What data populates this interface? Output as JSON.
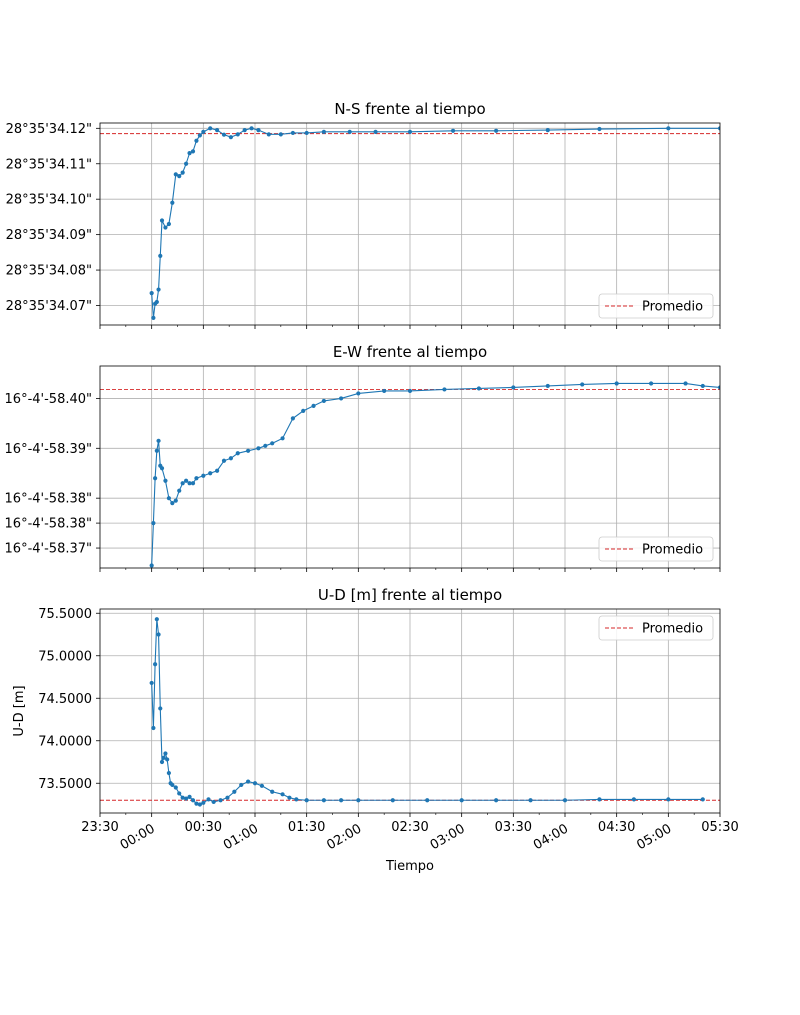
{
  "chart_data": [
    {
      "type": "line",
      "title": "N-S frente al tiempo",
      "ylabel": "",
      "ylim": [
        34.0645,
        34.1215
      ],
      "yticks": [
        {
          "v": 34.12,
          "label": "28°35'34.12\""
        },
        {
          "v": 34.11,
          "label": "28°35'34.11\""
        },
        {
          "v": 34.1,
          "label": "28°35'34.10\""
        },
        {
          "v": 34.09,
          "label": "28°35'34.09\""
        },
        {
          "v": 34.08,
          "label": "28°35'34.08\""
        },
        {
          "v": 34.07,
          "label": "28°35'34.07\""
        }
      ],
      "mean": 34.1185,
      "legend": {
        "label": "Promedio",
        "position": "lower right"
      },
      "series": [
        {
          "x": [
            0,
            1,
            2,
            3,
            4,
            5,
            6,
            8,
            10,
            12,
            14,
            16,
            18,
            20,
            22,
            24,
            26,
            28,
            30,
            34,
            38,
            42,
            46,
            50,
            54,
            58,
            62,
            68,
            75,
            82,
            90,
            100,
            115,
            130,
            150,
            175,
            200,
            230,
            260,
            300,
            330
          ],
          "y": [
            34.0735,
            34.0665,
            34.0705,
            34.071,
            34.0745,
            34.084,
            34.094,
            34.092,
            34.093,
            34.099,
            34.107,
            34.1065,
            34.1075,
            34.11,
            34.113,
            34.1135,
            34.1165,
            34.118,
            34.119,
            34.12,
            34.1195,
            34.1182,
            34.1175,
            34.1183,
            34.1195,
            34.12,
            34.1195,
            34.1183,
            34.1183,
            34.1187,
            34.1187,
            34.119,
            34.119,
            34.119,
            34.119,
            34.1193,
            34.1193,
            34.1195,
            34.1198,
            34.12,
            34.12
          ]
        }
      ]
    },
    {
      "type": "line",
      "title": "E-W frente al tiempo",
      "ylabel": "",
      "ylim": [
        58.366,
        58.4065
      ],
      "yticks": [
        {
          "v": 58.4,
          "label": "16°-4'-58.40\""
        },
        {
          "v": 58.39,
          "label": "16°-4'-58.39\""
        },
        {
          "v": 58.38,
          "label": "16°-4'-58.38\""
        },
        {
          "v": 58.375,
          "label": "16°-4'-58.38\""
        },
        {
          "v": 58.37,
          "label": "16°-4'-58.37\""
        }
      ],
      "mean": 58.4018,
      "legend": {
        "label": "Promedio",
        "position": "lower right"
      },
      "series": [
        {
          "x": [
            0,
            1,
            2,
            3,
            4,
            5,
            6,
            8,
            10,
            12,
            14,
            16,
            18,
            20,
            22,
            24,
            26,
            30,
            34,
            38,
            42,
            46,
            50,
            56,
            62,
            66,
            70,
            76,
            82,
            88,
            94,
            100,
            110,
            120,
            135,
            150,
            170,
            190,
            210,
            230,
            250,
            270,
            290,
            310,
            320,
            330
          ],
          "y": [
            58.3665,
            58.375,
            58.384,
            58.3895,
            58.3915,
            58.3865,
            58.386,
            58.3835,
            58.38,
            58.379,
            58.3795,
            58.3815,
            58.383,
            58.3835,
            58.383,
            58.383,
            58.384,
            58.3845,
            58.385,
            58.3855,
            58.3875,
            58.388,
            58.389,
            58.3895,
            58.39,
            58.3905,
            58.391,
            58.392,
            58.396,
            58.3975,
            58.3985,
            58.3995,
            58.4,
            58.401,
            58.4015,
            58.4015,
            58.4018,
            58.402,
            58.4022,
            58.4025,
            58.4028,
            58.403,
            58.403,
            58.403,
            58.4025,
            58.4022
          ]
        }
      ]
    },
    {
      "type": "line",
      "title": "U-D [m] frente al tiempo",
      "ylabel": "U-D [m]",
      "ylim": [
        73.15,
        75.55
      ],
      "yticks": [
        {
          "v": 75.5,
          "label": "75.5000"
        },
        {
          "v": 75.0,
          "label": "75.0000"
        },
        {
          "v": 74.5,
          "label": "74.5000"
        },
        {
          "v": 74.0,
          "label": "74.0000"
        },
        {
          "v": 73.5,
          "label": "73.5000"
        }
      ],
      "mean": 73.3,
      "legend": {
        "label": "Promedio",
        "position": "upper right"
      },
      "series": [
        {
          "x": [
            0,
            1,
            2,
            3,
            4,
            5,
            6,
            7,
            8,
            9,
            10,
            11,
            12,
            14,
            16,
            18,
            20,
            22,
            24,
            26,
            28,
            30,
            33,
            36,
            40,
            44,
            48,
            52,
            56,
            60,
            64,
            70,
            76,
            80,
            84,
            90,
            100,
            110,
            120,
            140,
            160,
            180,
            200,
            220,
            240,
            260,
            280,
            300,
            320
          ],
          "y": [
            74.68,
            74.15,
            74.9,
            75.43,
            75.25,
            74.38,
            73.75,
            73.8,
            73.85,
            73.78,
            73.62,
            73.5,
            73.48,
            73.45,
            73.38,
            73.33,
            73.32,
            73.34,
            73.3,
            73.26,
            73.25,
            73.27,
            73.31,
            73.28,
            73.3,
            73.33,
            73.4,
            73.48,
            73.52,
            73.5,
            73.47,
            73.4,
            73.37,
            73.33,
            73.31,
            73.3,
            73.3,
            73.3,
            73.3,
            73.3,
            73.3,
            73.3,
            73.3,
            73.3,
            73.3,
            73.31,
            73.31,
            73.31,
            73.31
          ]
        }
      ]
    }
  ],
  "xaxis": {
    "xlabel": "Tiempo",
    "xlim": [
      -30,
      330
    ],
    "ticks": [
      {
        "v": -30,
        "label": "23:30"
      },
      {
        "v": 0,
        "label": "00:00"
      },
      {
        "v": 30,
        "label": "00:30"
      },
      {
        "v": 60,
        "label": "01:00"
      },
      {
        "v": 90,
        "label": "01:30"
      },
      {
        "v": 120,
        "label": "02:00"
      },
      {
        "v": 150,
        "label": "02:30"
      },
      {
        "v": 180,
        "label": "03:00"
      },
      {
        "v": 210,
        "label": "03:30"
      },
      {
        "v": 240,
        "label": "04:00"
      },
      {
        "v": 270,
        "label": "04:30"
      },
      {
        "v": 300,
        "label": "05:00"
      },
      {
        "v": 330,
        "label": "05:30"
      }
    ]
  },
  "colors": {
    "series": "#1f77b4",
    "mean": "#d62728",
    "grid": "#b0b0b0"
  }
}
